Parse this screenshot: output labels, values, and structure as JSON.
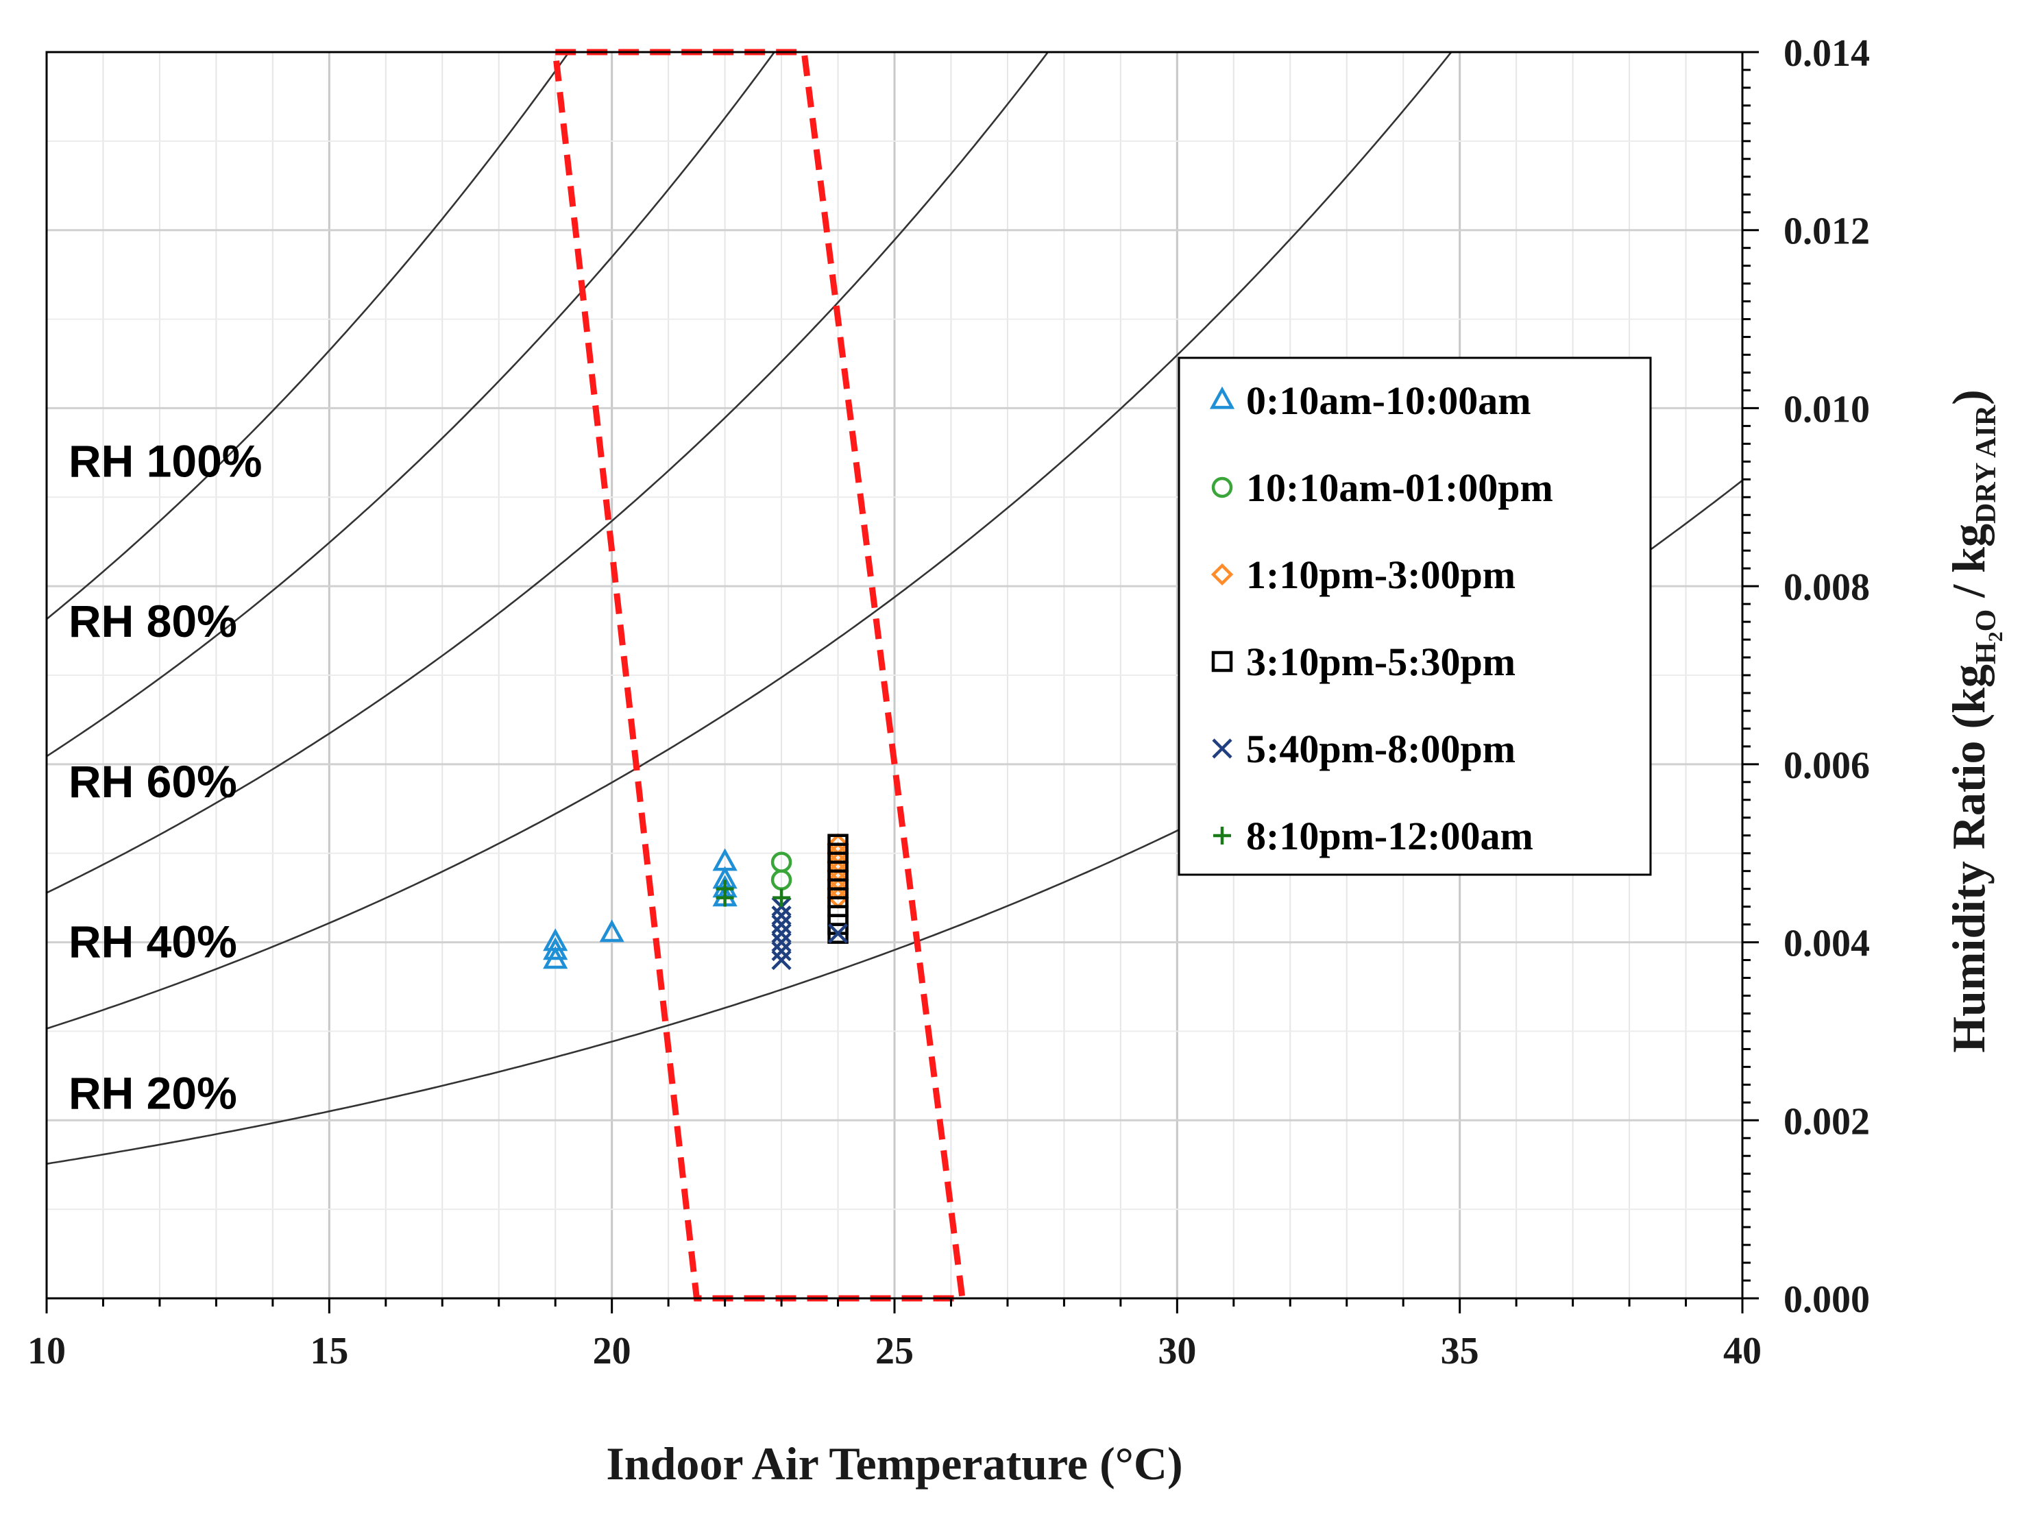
{
  "chart_data": {
    "type": "scatter",
    "title": "",
    "xlabel": "Indoor Air Temperature (°C)",
    "ylabel": {
      "main": "Humidity Ratio (kg",
      "sub1": "H",
      "sub1b": "2",
      "sub1c": "O",
      "mid": " / kg",
      "sub2": "DRY AIR",
      "end": ")"
    },
    "xlim": [
      10,
      40
    ],
    "ylim": [
      0,
      0.014
    ],
    "x_ticks": [
      "10",
      "15",
      "20",
      "25",
      "30",
      "35",
      "40"
    ],
    "x_tick_values": [
      10,
      15,
      20,
      25,
      30,
      35,
      40
    ],
    "y_ticks": [
      "0.000",
      "0.002",
      "0.004",
      "0.006",
      "0.008",
      "0.010",
      "0.012",
      "0.014"
    ],
    "y_tick_values": [
      0,
      0.002,
      0.004,
      0.006,
      0.008,
      0.01,
      0.012,
      0.014
    ],
    "y_axis_side": "right",
    "grid": true,
    "rh_curves": [
      {
        "rh": 100,
        "label": "RH 100%",
        "label_y": 0.0094
      },
      {
        "rh": 80,
        "label": "RH 80%",
        "label_y": 0.0076
      },
      {
        "rh": 60,
        "label": "RH 60%",
        "label_y": 0.0058
      },
      {
        "rh": 40,
        "label": "RH 40%",
        "label_y": 0.004
      },
      {
        "rh": 20,
        "label": "RH 20%",
        "label_y": 0.0023
      }
    ],
    "comfort_zone": {
      "color": "#ff1a1a",
      "corners": [
        [
          19.0,
          0.014
        ],
        [
          23.4,
          0.014
        ],
        [
          26.2,
          0.0
        ],
        [
          21.5,
          0.0
        ]
      ]
    },
    "legend_position": "right",
    "series": [
      {
        "name": "0:10am-10:00am",
        "marker": "triangle",
        "color": "#1f8fd6",
        "points": [
          [
            19,
            0.0038
          ],
          [
            19,
            0.0039
          ],
          [
            19,
            0.004
          ],
          [
            20,
            0.0041
          ],
          [
            22,
            0.0045
          ],
          [
            22,
            0.0046
          ],
          [
            22,
            0.0047
          ],
          [
            22,
            0.0049
          ]
        ]
      },
      {
        "name": "10:10am-01:00pm",
        "marker": "circle",
        "color": "#3aa63a",
        "points": [
          [
            23,
            0.0047
          ],
          [
            23,
            0.0049
          ]
        ]
      },
      {
        "name": "1:10pm-3:00pm",
        "marker": "diamond",
        "color": "#ff8c2a",
        "points": [
          [
            24,
            0.0045
          ],
          [
            24,
            0.0046
          ],
          [
            24,
            0.0047
          ],
          [
            24,
            0.0048
          ],
          [
            24,
            0.0049
          ],
          [
            24,
            0.005
          ],
          [
            24,
            0.0051
          ]
        ]
      },
      {
        "name": "3:10pm-5:30pm",
        "marker": "square",
        "color": "#000000",
        "points": [
          [
            24,
            0.0041
          ],
          [
            24,
            0.0042
          ],
          [
            24,
            0.0043
          ],
          [
            24,
            0.0044
          ],
          [
            24,
            0.0045
          ],
          [
            24,
            0.0046
          ],
          [
            24,
            0.0047
          ],
          [
            24,
            0.0048
          ],
          [
            24,
            0.0049
          ],
          [
            24,
            0.005
          ],
          [
            24,
            0.0051
          ]
        ]
      },
      {
        "name": "5:40pm-8:00pm",
        "marker": "x",
        "color": "#1f3f7f",
        "points": [
          [
            23,
            0.0038
          ],
          [
            23,
            0.0039
          ],
          [
            23,
            0.004
          ],
          [
            23,
            0.0041
          ],
          [
            23,
            0.0042
          ],
          [
            23,
            0.0043
          ],
          [
            23,
            0.0044
          ],
          [
            24,
            0.0041
          ]
        ]
      },
      {
        "name": "8:10pm-12:00am",
        "marker": "plus",
        "color": "#1a7a1a",
        "points": [
          [
            22,
            0.0045
          ],
          [
            22,
            0.0046
          ],
          [
            23,
            0.0045
          ]
        ]
      }
    ]
  }
}
